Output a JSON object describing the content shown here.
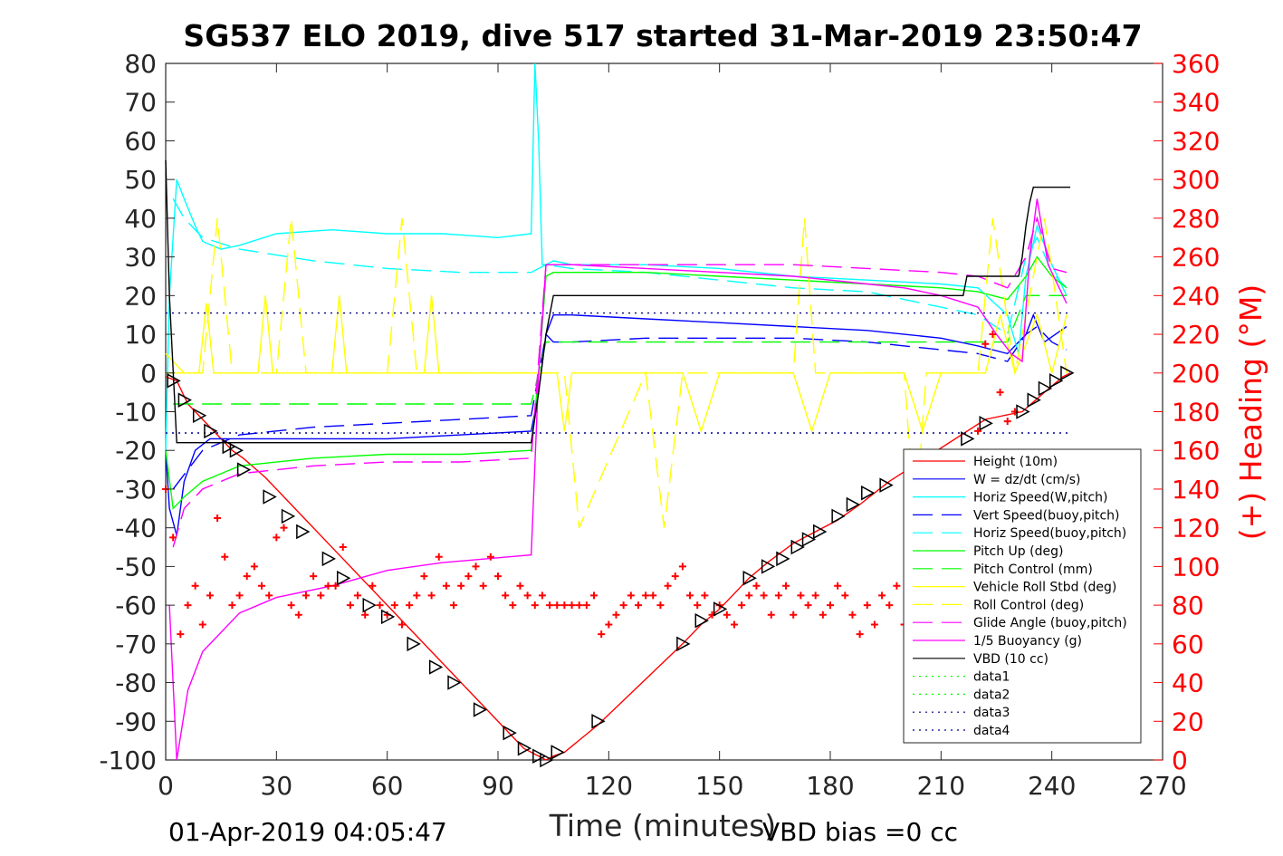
{
  "title": "SG537 ELO 2019, dive 517 started 31-Mar-2019 23:50:47",
  "footer_left": "01-Apr-2019 04:05:47",
  "footer_right": "VBD bias =0 cc",
  "chart_data": {
    "type": "line",
    "xlabel": "Time (minutes)",
    "ylabel_left": "",
    "ylabel_right": "(+) Heading (°M)",
    "xlim": [
      0,
      270
    ],
    "ylim_left": [
      -100,
      80
    ],
    "ylim_right": [
      0,
      360
    ],
    "xticks": [
      0,
      30,
      60,
      90,
      120,
      150,
      180,
      210,
      240,
      270
    ],
    "yticks_left": [
      -100,
      -90,
      -80,
      -70,
      -60,
      -50,
      -40,
      -30,
      -20,
      -10,
      0,
      10,
      20,
      30,
      40,
      50,
      60,
      70,
      80
    ],
    "yticks_right": [
      0,
      20,
      40,
      60,
      80,
      100,
      120,
      140,
      160,
      180,
      200,
      220,
      240,
      260,
      280,
      300,
      320,
      340,
      360
    ],
    "legend_position": "bottom-right",
    "grid": false,
    "series": [
      {
        "name": "Height (10m)",
        "color": "#ff0000",
        "dash": "solid",
        "x": [
          0,
          3,
          6,
          10,
          14,
          18,
          21,
          27,
          32,
          37,
          44,
          48,
          55,
          60,
          67,
          73,
          78,
          85,
          93,
          97,
          101,
          103,
          105,
          108,
          117,
          140,
          145,
          150,
          158,
          163,
          170,
          182,
          188,
          192,
          196,
          222,
          232,
          238,
          243,
          245
        ],
        "y": [
          -1,
          -2,
          -8,
          -12,
          -16,
          -20,
          -22,
          -27,
          -32,
          -37,
          -44,
          -48,
          -55,
          -60,
          -67,
          -73,
          -78,
          -85,
          -93,
          -97,
          -99,
          -100,
          -99,
          -98,
          -91,
          -70,
          -65,
          -61,
          -53,
          -49,
          -44,
          -38,
          -34,
          -31,
          -28,
          -12,
          -10,
          -5,
          -1,
          0
        ]
      },
      {
        "name": "W = dz/dt (cm/s)",
        "color": "#0000ff",
        "dash": "solid",
        "x": [
          0,
          1,
          3,
          5,
          8,
          12,
          20,
          40,
          60,
          80,
          99,
          101,
          103,
          105,
          110,
          130,
          150,
          170,
          190,
          210,
          220,
          228,
          233,
          235,
          238,
          241,
          244
        ],
        "y": [
          -20,
          -35,
          -42,
          -28,
          -20,
          -17,
          -17,
          -17,
          -17,
          -16,
          -15,
          -5,
          10,
          15,
          15,
          14,
          13,
          12,
          11,
          9,
          7,
          5,
          10,
          15,
          8,
          10,
          12
        ]
      },
      {
        "name": "Horiz Speed(W,pitch)",
        "color": "#00ffff",
        "dash": "solid",
        "x": [
          0,
          1,
          3,
          5,
          8,
          10,
          15,
          20,
          30,
          45,
          60,
          75,
          90,
          99,
          100,
          101,
          102,
          103,
          105,
          110,
          130,
          150,
          170,
          190,
          210,
          220,
          228,
          231,
          233,
          236,
          240,
          244
        ],
        "y": [
          -20,
          20,
          50,
          45,
          38,
          34,
          32,
          33,
          36,
          37,
          36,
          36,
          35,
          36,
          80,
          60,
          28,
          28,
          29,
          28,
          28,
          27,
          25,
          24,
          23,
          22,
          15,
          5,
          25,
          38,
          28,
          20
        ]
      },
      {
        "name": "Vert Speed(buoy,pitch)",
        "color": "#0000ff",
        "dash": "dashed",
        "x": [
          2,
          10,
          20,
          40,
          60,
          80,
          99,
          103,
          105,
          110,
          130,
          150,
          170,
          190,
          210,
          220,
          228,
          233,
          236,
          240,
          244
        ],
        "y": [
          -30,
          -20,
          -16,
          -14,
          -13,
          -12,
          -11,
          10,
          8,
          8,
          9,
          9,
          9,
          8,
          6,
          5,
          3,
          10,
          12,
          8,
          6
        ]
      },
      {
        "name": "Horiz Speed(buoy,pitch)",
        "color": "#00ffff",
        "dash": "dashed",
        "x": [
          2,
          5,
          10,
          20,
          40,
          60,
          80,
          99,
          103,
          110,
          130,
          150,
          170,
          190,
          210,
          220,
          228,
          233,
          236,
          240,
          244
        ],
        "y": [
          45,
          40,
          35,
          32,
          29,
          27,
          26,
          26,
          28,
          27,
          26,
          24,
          22,
          21,
          17,
          15,
          10,
          30,
          35,
          26,
          22
        ]
      },
      {
        "name": "Pitch Up (deg)",
        "color": "#00ff00",
        "dash": "solid",
        "x": [
          0,
          2,
          5,
          10,
          20,
          40,
          60,
          80,
          99,
          101,
          103,
          105,
          110,
          130,
          150,
          170,
          190,
          210,
          220,
          228,
          233,
          236,
          240,
          244
        ],
        "y": [
          -20,
          -35,
          -32,
          -28,
          -24,
          -22,
          -21,
          -21,
          -20,
          0,
          25,
          26,
          26,
          26,
          25,
          24,
          23,
          22,
          21,
          19,
          25,
          30,
          25,
          22
        ]
      },
      {
        "name": "Pitch Control (mm)",
        "color": "#00ff00",
        "dash": "dashed",
        "x": [
          2,
          10,
          30,
          60,
          90,
          99,
          103,
          110,
          130,
          150,
          170,
          190,
          210,
          220,
          228,
          233,
          240,
          244
        ],
        "y": [
          -8,
          -8,
          -8,
          -8,
          -8,
          -8,
          8,
          8,
          8,
          8,
          8,
          8,
          8,
          8,
          8,
          20,
          20,
          20
        ]
      },
      {
        "name": "Vehicle Roll Stbd (deg)",
        "color": "#ffff00",
        "dash": "solid",
        "x": [
          0,
          5,
          9,
          11,
          13,
          15,
          25,
          27,
          29,
          31,
          45,
          47,
          49,
          51,
          70,
          72,
          74,
          76,
          95,
          99,
          102,
          106,
          108,
          110,
          140,
          145,
          150,
          170,
          175,
          180,
          200,
          205,
          210,
          222,
          226,
          230,
          236,
          240,
          244
        ],
        "y": [
          5,
          0,
          0,
          18,
          0,
          0,
          0,
          20,
          0,
          0,
          0,
          20,
          0,
          0,
          0,
          20,
          0,
          0,
          0,
          0,
          0,
          0,
          -15,
          0,
          0,
          -15,
          0,
          0,
          -15,
          0,
          0,
          -15,
          0,
          0,
          15,
          0,
          15,
          0,
          15
        ]
      },
      {
        "name": "Roll Control (deg)",
        "color": "#ffff00",
        "dash": "dashed",
        "x": [
          0,
          10,
          14,
          18,
          30,
          34,
          38,
          60,
          64,
          68,
          90,
          99,
          103,
          108,
          112,
          130,
          135,
          140,
          170,
          173,
          176,
          200,
          203,
          206,
          220,
          224,
          230,
          238,
          244
        ],
        "y": [
          0,
          0,
          40,
          0,
          0,
          40,
          0,
          0,
          40,
          0,
          0,
          0,
          0,
          0,
          -40,
          0,
          -40,
          0,
          0,
          40,
          0,
          0,
          -40,
          0,
          0,
          40,
          0,
          40,
          0
        ]
      },
      {
        "name": "Glide Angle (buoy,pitch)",
        "color": "#ff00ff",
        "dash": "dashed",
        "x": [
          2,
          5,
          10,
          20,
          40,
          60,
          80,
          99,
          103,
          110,
          130,
          150,
          170,
          190,
          210,
          220,
          228,
          233,
          236,
          240,
          244
        ],
        "y": [
          -45,
          -35,
          -30,
          -26,
          -24,
          -23,
          -23,
          -22,
          28,
          28,
          28,
          28,
          28,
          27,
          26,
          25,
          22,
          30,
          40,
          27,
          26
        ]
      },
      {
        "name": "1/5 Buoyancy (g)",
        "color": "#ff00ff",
        "dash": "solid",
        "x": [
          1,
          3,
          6,
          10,
          15,
          20,
          30,
          45,
          60,
          75,
          99,
          101,
          103,
          110,
          130,
          150,
          170,
          190,
          200,
          210,
          220,
          225,
          229,
          232,
          234,
          236,
          239,
          244
        ],
        "y": [
          -60,
          -100,
          -82,
          -72,
          -67,
          -62,
          -58,
          -55,
          -51,
          -49,
          -47,
          0,
          28,
          28,
          27,
          26,
          25,
          23,
          22,
          20,
          17,
          10,
          5,
          3,
          30,
          45,
          28,
          18
        ]
      },
      {
        "name": "VBD (10 cc)",
        "color": "#000000",
        "dash": "solid",
        "x": [
          0,
          1,
          3,
          20,
          60,
          99,
          101,
          103,
          105,
          216,
          217,
          230,
          231,
          232,
          233,
          234,
          235,
          236,
          245
        ],
        "y": [
          55,
          20,
          -18,
          -18,
          -18,
          -18,
          -5,
          10,
          20,
          20,
          25,
          25,
          25,
          30,
          38,
          44,
          48,
          48,
          48
        ]
      },
      {
        "name": "data1",
        "color": "#00ff00",
        "dash": "dotted",
        "x": [],
        "y": []
      },
      {
        "name": "data2",
        "color": "#00ff00",
        "dash": "dotted",
        "x": [],
        "y": []
      },
      {
        "name": "data3",
        "color": "#00008b",
        "dash": "dotted",
        "x": [
          0,
          245
        ],
        "y": [
          15.5,
          15.5
        ]
      },
      {
        "name": "data4",
        "color": "#00008b",
        "dash": "dotted",
        "x": [
          0,
          245
        ],
        "y": [
          -15.5,
          -15.5
        ]
      }
    ],
    "heading_series": {
      "color": "#ff0000",
      "marker": "+",
      "axis": "right",
      "x": [
        0,
        2,
        4,
        6,
        8,
        10,
        12,
        14,
        16,
        18,
        20,
        22,
        24,
        26,
        28,
        30,
        32,
        34,
        36,
        38,
        40,
        42,
        44,
        46,
        48,
        50,
        52,
        54,
        56,
        58,
        60,
        62,
        64,
        66,
        68,
        70,
        72,
        74,
        76,
        78,
        80,
        82,
        84,
        86,
        88,
        90,
        92,
        94,
        96,
        98,
        100,
        102,
        104,
        106,
        108,
        110,
        112,
        114,
        116,
        118,
        120,
        122,
        124,
        126,
        128,
        130,
        132,
        134,
        136,
        138,
        140,
        142,
        144,
        146,
        148,
        150,
        152,
        154,
        156,
        158,
        160,
        162,
        164,
        166,
        168,
        170,
        172,
        174,
        176,
        178,
        180,
        182,
        184,
        186,
        188,
        190,
        192,
        194,
        196,
        198,
        200,
        202,
        204,
        206,
        208,
        210,
        212,
        214,
        216,
        218,
        220,
        222,
        224,
        226,
        228,
        230
      ],
      "y": [
        140,
        115,
        65,
        80,
        90,
        70,
        85,
        125,
        105,
        80,
        85,
        95,
        100,
        90,
        85,
        115,
        120,
        80,
        75,
        85,
        95,
        85,
        90,
        90,
        110,
        80,
        85,
        75,
        90,
        80,
        75,
        80,
        70,
        80,
        85,
        95,
        85,
        105,
        90,
        80,
        90,
        95,
        100,
        90,
        105,
        95,
        85,
        80,
        90,
        85,
        80,
        85,
        80,
        80,
        80,
        80,
        80,
        80,
        85,
        65,
        70,
        75,
        80,
        85,
        80,
        85,
        85,
        80,
        90,
        95,
        100,
        85,
        80,
        85,
        75,
        80,
        75,
        70,
        80,
        85,
        90,
        85,
        75,
        85,
        90,
        75,
        85,
        80,
        85,
        75,
        80,
        90,
        85,
        75,
        65,
        80,
        70,
        85,
        80,
        90,
        70,
        85,
        80,
        75,
        80,
        80,
        85,
        90,
        100,
        140,
        170,
        215,
        220,
        190,
        175,
        180
      ]
    },
    "markers": {
      "color": "#000000",
      "shape": "triangle",
      "points": [
        [
          2,
          -2
        ],
        [
          5,
          -7
        ],
        [
          9,
          -11
        ],
        [
          12,
          -15
        ],
        [
          17,
          -19
        ],
        [
          19,
          -20
        ],
        [
          21,
          -25
        ],
        [
          28,
          -32
        ],
        [
          33,
          -37
        ],
        [
          37,
          -41
        ],
        [
          44,
          -48
        ],
        [
          48,
          -53
        ],
        [
          55,
          -60
        ],
        [
          60,
          -63
        ],
        [
          67,
          -70
        ],
        [
          73,
          -76
        ],
        [
          78,
          -80
        ],
        [
          85,
          -87
        ],
        [
          93,
          -93
        ],
        [
          97,
          -97
        ],
        [
          101,
          -99
        ],
        [
          103,
          -100
        ],
        [
          106,
          -98
        ],
        [
          117,
          -90
        ],
        [
          140,
          -70
        ],
        [
          145,
          -64
        ],
        [
          150,
          -61
        ],
        [
          158,
          -53
        ],
        [
          163,
          -50
        ],
        [
          167,
          -48
        ],
        [
          171,
          -45
        ],
        [
          174,
          -43
        ],
        [
          177,
          -41
        ],
        [
          182,
          -37
        ],
        [
          186,
          -34
        ],
        [
          190,
          -31
        ],
        [
          195,
          -29
        ],
        [
          217,
          -17
        ],
        [
          222,
          -13
        ],
        [
          232,
          -10
        ],
        [
          235,
          -7
        ],
        [
          238,
          -4
        ],
        [
          241,
          -2
        ],
        [
          244,
          0
        ]
      ]
    }
  }
}
